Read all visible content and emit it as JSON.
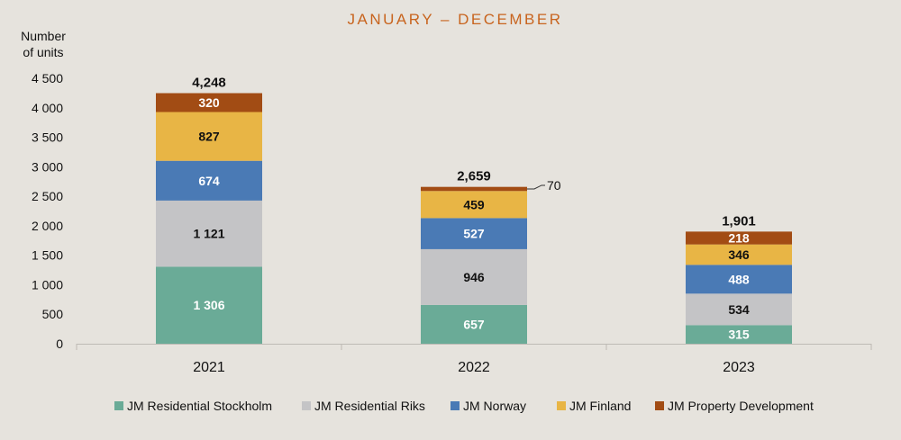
{
  "chart_data": {
    "type": "bar",
    "stacked": true,
    "title": "JANUARY – DECEMBER",
    "ylabel_lines": [
      "Number",
      "of units"
    ],
    "xlabel": "",
    "ylim": [
      0,
      4500
    ],
    "y_ticks": [
      0,
      500,
      1000,
      1500,
      2000,
      2500,
      3000,
      3500,
      4000,
      4500
    ],
    "y_tick_labels": [
      "0",
      "500",
      "1 000",
      "1 500",
      "2 000",
      "2 500",
      "3 000",
      "3 500",
      "4 000",
      "4 500"
    ],
    "categories": [
      "2021",
      "2022",
      "2023"
    ],
    "series": [
      {
        "name": "JM Residential Stockholm",
        "color": "#6aab97",
        "label_color": "#ffffff",
        "values": [
          1306,
          657,
          315
        ],
        "labels": [
          "1 306",
          "657",
          "315"
        ]
      },
      {
        "name": "JM Residential Riks",
        "color": "#c4c4c6",
        "label_color": "#111111",
        "values": [
          1121,
          946,
          534
        ],
        "labels": [
          "1 121",
          "946",
          "534"
        ]
      },
      {
        "name": "JM Norway",
        "color": "#4a7ab5",
        "label_color": "#ffffff",
        "values": [
          674,
          527,
          488
        ],
        "labels": [
          "674",
          "527",
          "488"
        ]
      },
      {
        "name": "JM Finland",
        "color": "#e8b545",
        "label_color": "#111111",
        "values": [
          827,
          459,
          346
        ],
        "labels": [
          "827",
          "459",
          "346"
        ]
      },
      {
        "name": "JM Property Development",
        "color": "#a24c14",
        "label_color": "#ffffff",
        "values": [
          320,
          70,
          218
        ],
        "labels": [
          "320",
          "70",
          "218"
        ]
      }
    ],
    "totals": [
      "4,248",
      "2,659",
      "1,901"
    ],
    "callout": {
      "category_index": 1,
      "series_index": 4,
      "text": "70"
    },
    "legend_position": "bottom"
  }
}
